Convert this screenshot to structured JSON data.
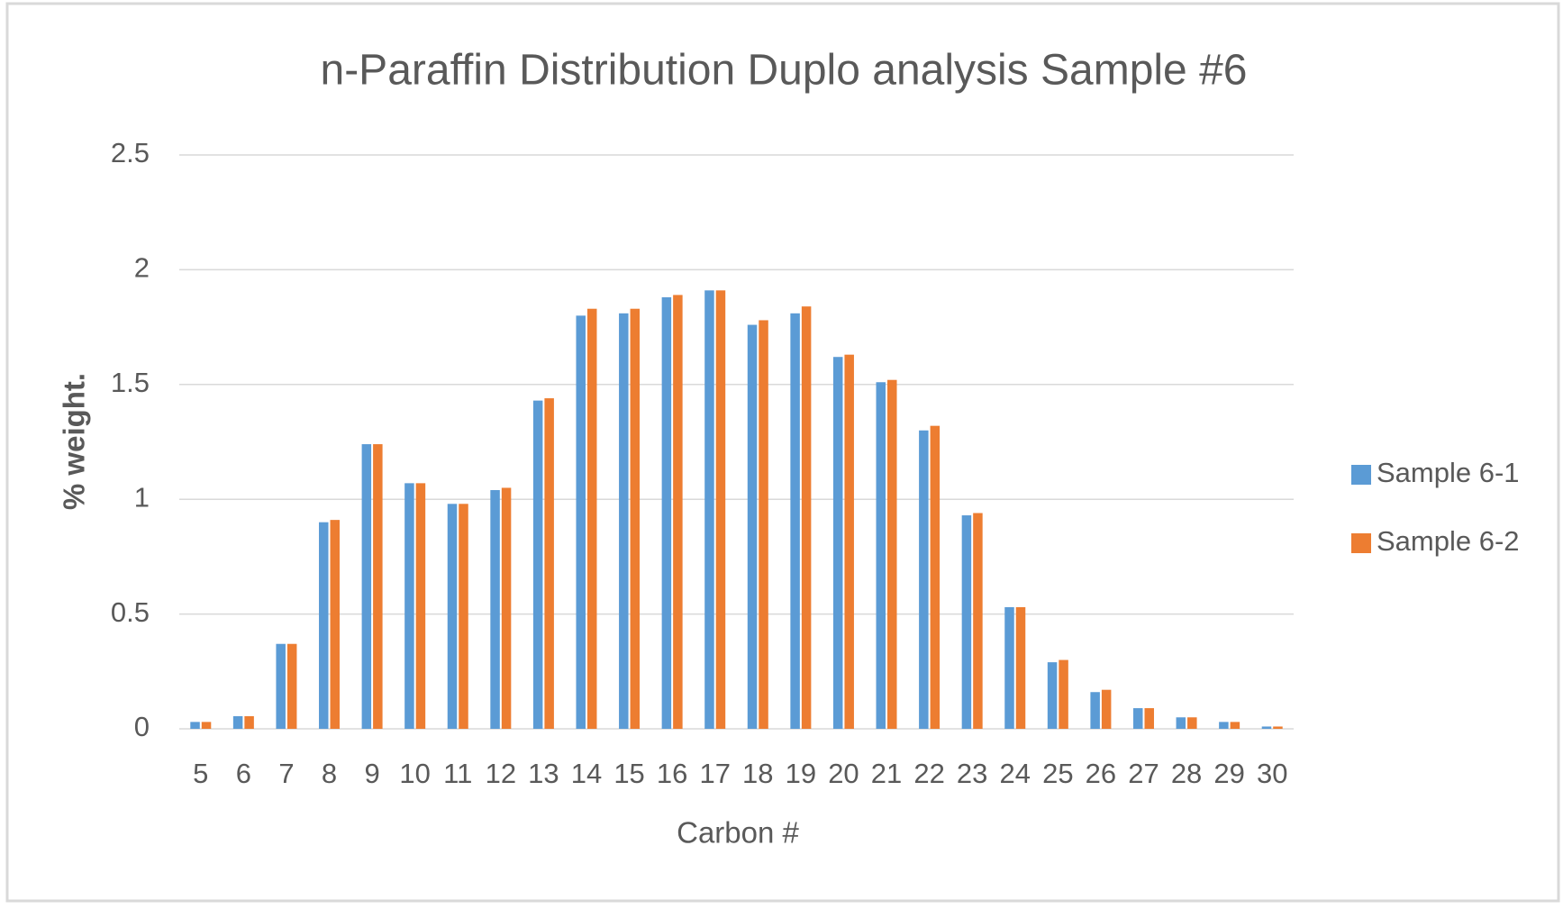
{
  "chart_data": {
    "type": "bar",
    "title": "n-Paraffin Distribution Duplo analysis Sample #6",
    "x_label": "Carbon #",
    "y_label": "% weight.",
    "categories": [
      "5",
      "6",
      "7",
      "8",
      "9",
      "10",
      "11",
      "12",
      "13",
      "14",
      "15",
      "16",
      "17",
      "18",
      "19",
      "20",
      "21",
      "22",
      "23",
      "24",
      "25",
      "26",
      "27",
      "28",
      "29",
      "30"
    ],
    "series": [
      {
        "name": "Sample 6-1",
        "color": "#5b9bd5",
        "values": [
          0.03,
          0.055,
          0.37,
          0.9,
          1.24,
          1.07,
          0.98,
          1.04,
          1.43,
          1.8,
          1.81,
          1.88,
          1.91,
          1.76,
          1.81,
          1.62,
          1.51,
          1.3,
          0.93,
          0.53,
          0.29,
          0.16,
          0.09,
          0.05,
          0.03,
          0.01
        ]
      },
      {
        "name": "Sample 6-2",
        "color": "#ed7d31",
        "values": [
          0.03,
          0.055,
          0.37,
          0.91,
          1.24,
          1.07,
          0.98,
          1.05,
          1.44,
          1.83,
          1.83,
          1.89,
          1.91,
          1.78,
          1.84,
          1.63,
          1.52,
          1.32,
          0.94,
          0.53,
          0.3,
          0.17,
          0.09,
          0.05,
          0.03,
          0.01
        ]
      }
    ],
    "ylim": [
      0,
      2.5
    ],
    "yticks": [
      0,
      0.5,
      1,
      1.5,
      2,
      2.5
    ],
    "grid": true,
    "legend": "right"
  }
}
